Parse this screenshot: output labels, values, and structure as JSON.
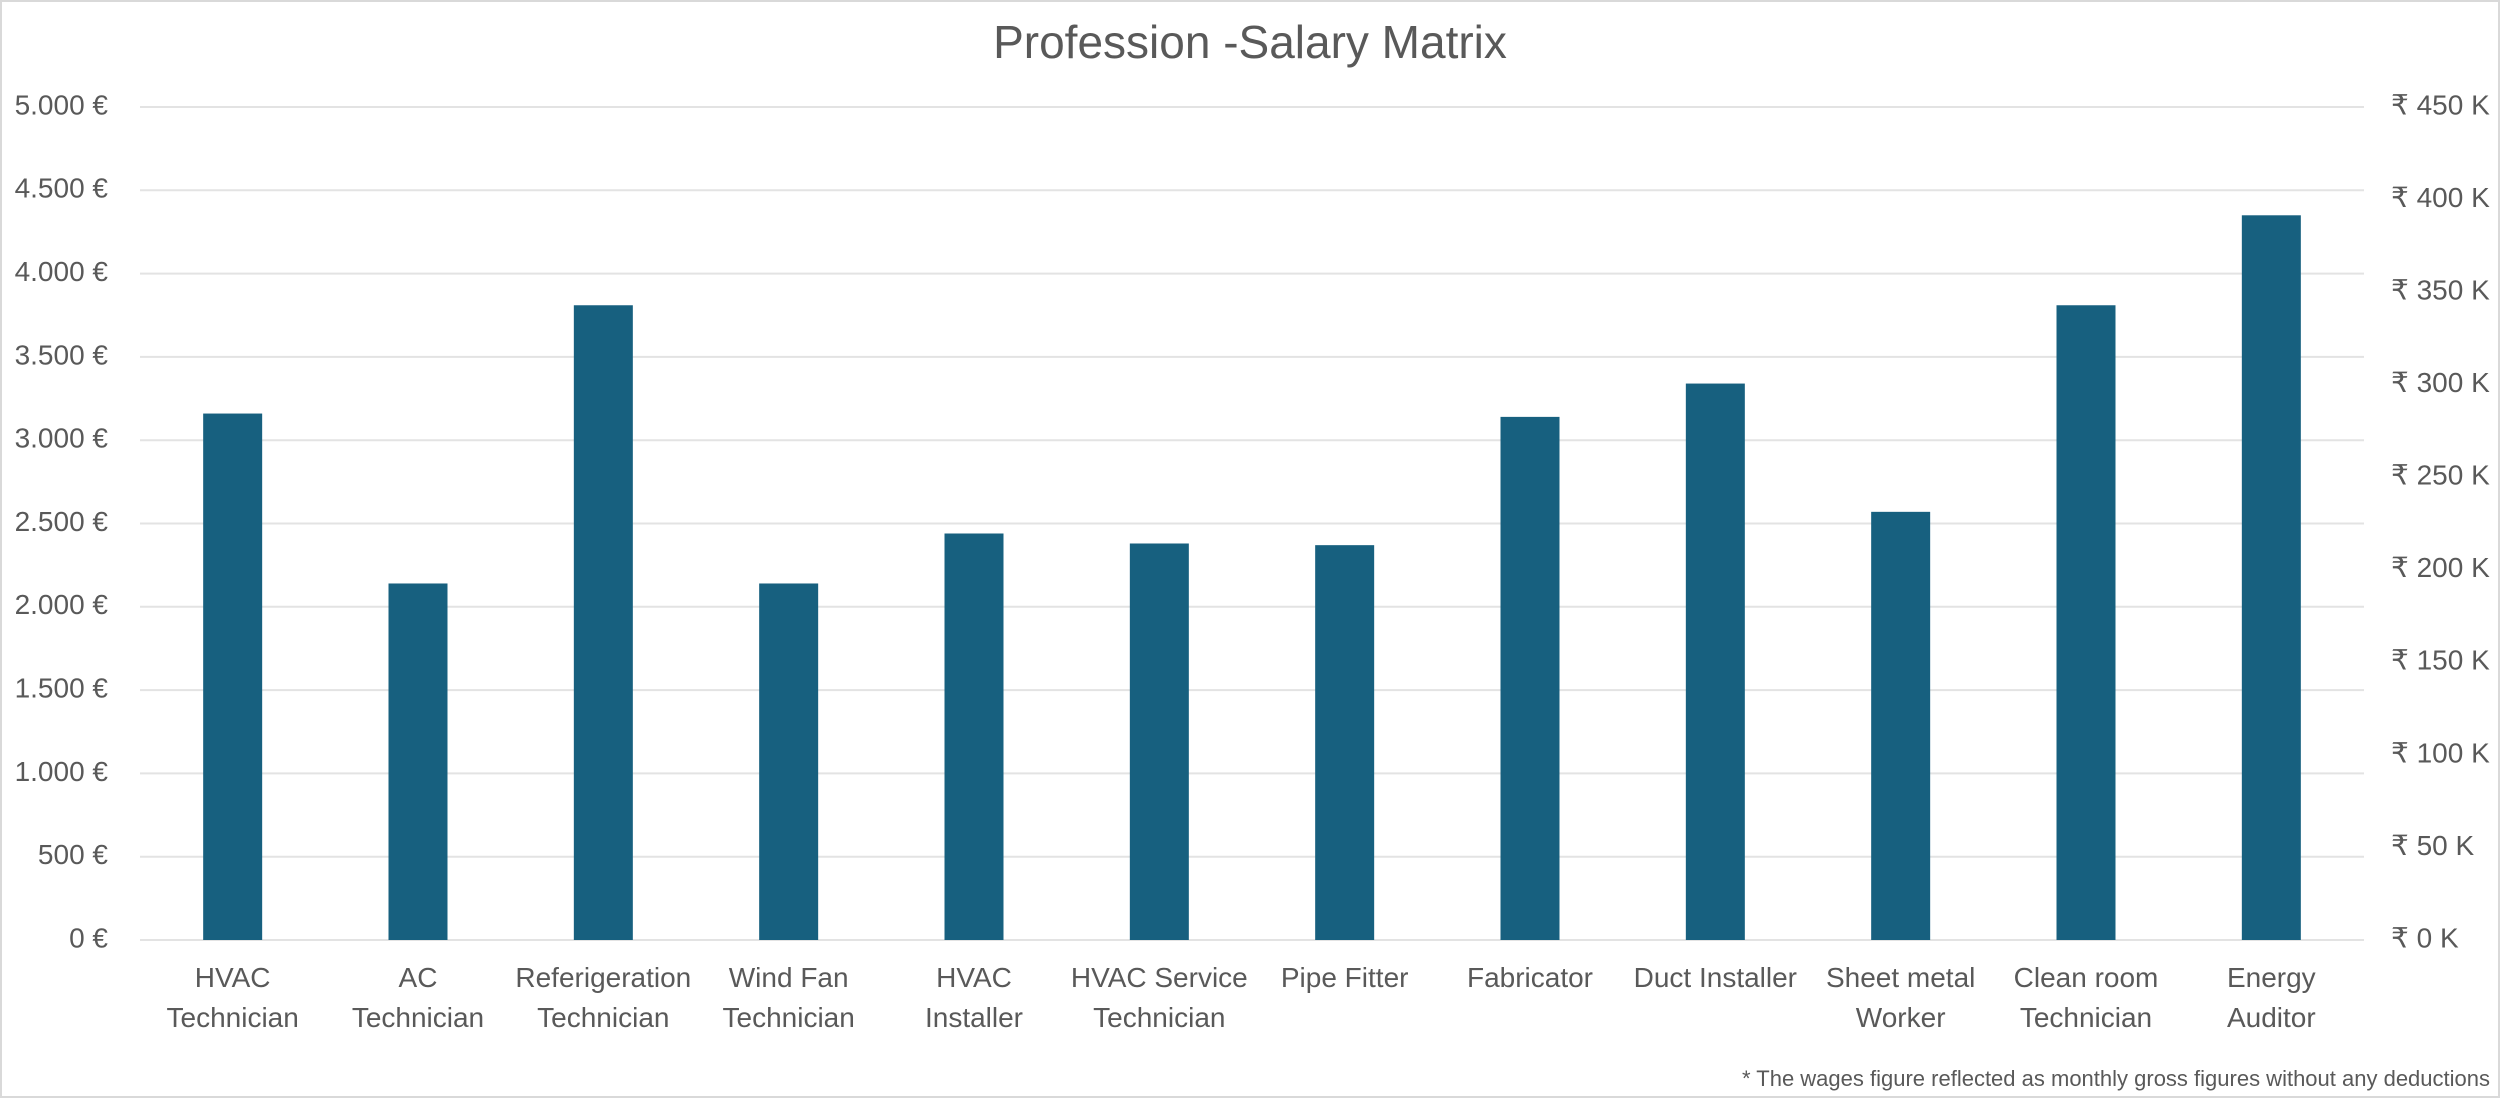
{
  "chart_data": {
    "type": "bar",
    "title": "Profession -Salary Matrix",
    "footnote": "* The wages figure reflected as monthly gross figures without any deductions",
    "categories": [
      "HVAC Technician",
      "AC Technician",
      "Referigeration Technician",
      "Wind Fan Technician",
      "HVAC Installer",
      "HVAC Service Technician",
      "Pipe Fitter",
      "Fabricator",
      "Duct Installer",
      "Sheet metal Worker",
      "Clean room Technician",
      "Energy Auditor"
    ],
    "values": [
      3160,
      2140,
      3810,
      2140,
      2440,
      2380,
      2370,
      3140,
      3340,
      2570,
      3810,
      4350
    ],
    "color": "#17607f",
    "ylim": [
      0,
      5000
    ],
    "yticks": [
      {
        "value": 0,
        "label": "0 €"
      },
      {
        "value": 500,
        "label": "500 €"
      },
      {
        "value": 1000,
        "label": "1.000 €"
      },
      {
        "value": 1500,
        "label": "1.500 €"
      },
      {
        "value": 2000,
        "label": "2.000 €"
      },
      {
        "value": 2500,
        "label": "2.500 €"
      },
      {
        "value": 3000,
        "label": "3.000 €"
      },
      {
        "value": 3500,
        "label": "3.500 €"
      },
      {
        "value": 4000,
        "label": "4.000 €"
      },
      {
        "value": 4500,
        "label": "4.500 €"
      },
      {
        "value": 5000,
        "label": "5.000 €"
      }
    ],
    "y2lim": [
      0,
      450000
    ],
    "y2ticks": [
      {
        "value": 0,
        "label": "₹ 0 K"
      },
      {
        "value": 50000,
        "label": "₹ 50 K"
      },
      {
        "value": 100000,
        "label": "₹ 100 K"
      },
      {
        "value": 150000,
        "label": "₹ 150 K"
      },
      {
        "value": 200000,
        "label": "₹ 200 K"
      },
      {
        "value": 250000,
        "label": "₹ 250 K"
      },
      {
        "value": 300000,
        "label": "₹ 300 K"
      },
      {
        "value": 350000,
        "label": "₹ 350 K"
      },
      {
        "value": 400000,
        "label": "₹ 400 K"
      },
      {
        "value": 450000,
        "label": "₹ 450 K"
      }
    ],
    "grid": true
  }
}
